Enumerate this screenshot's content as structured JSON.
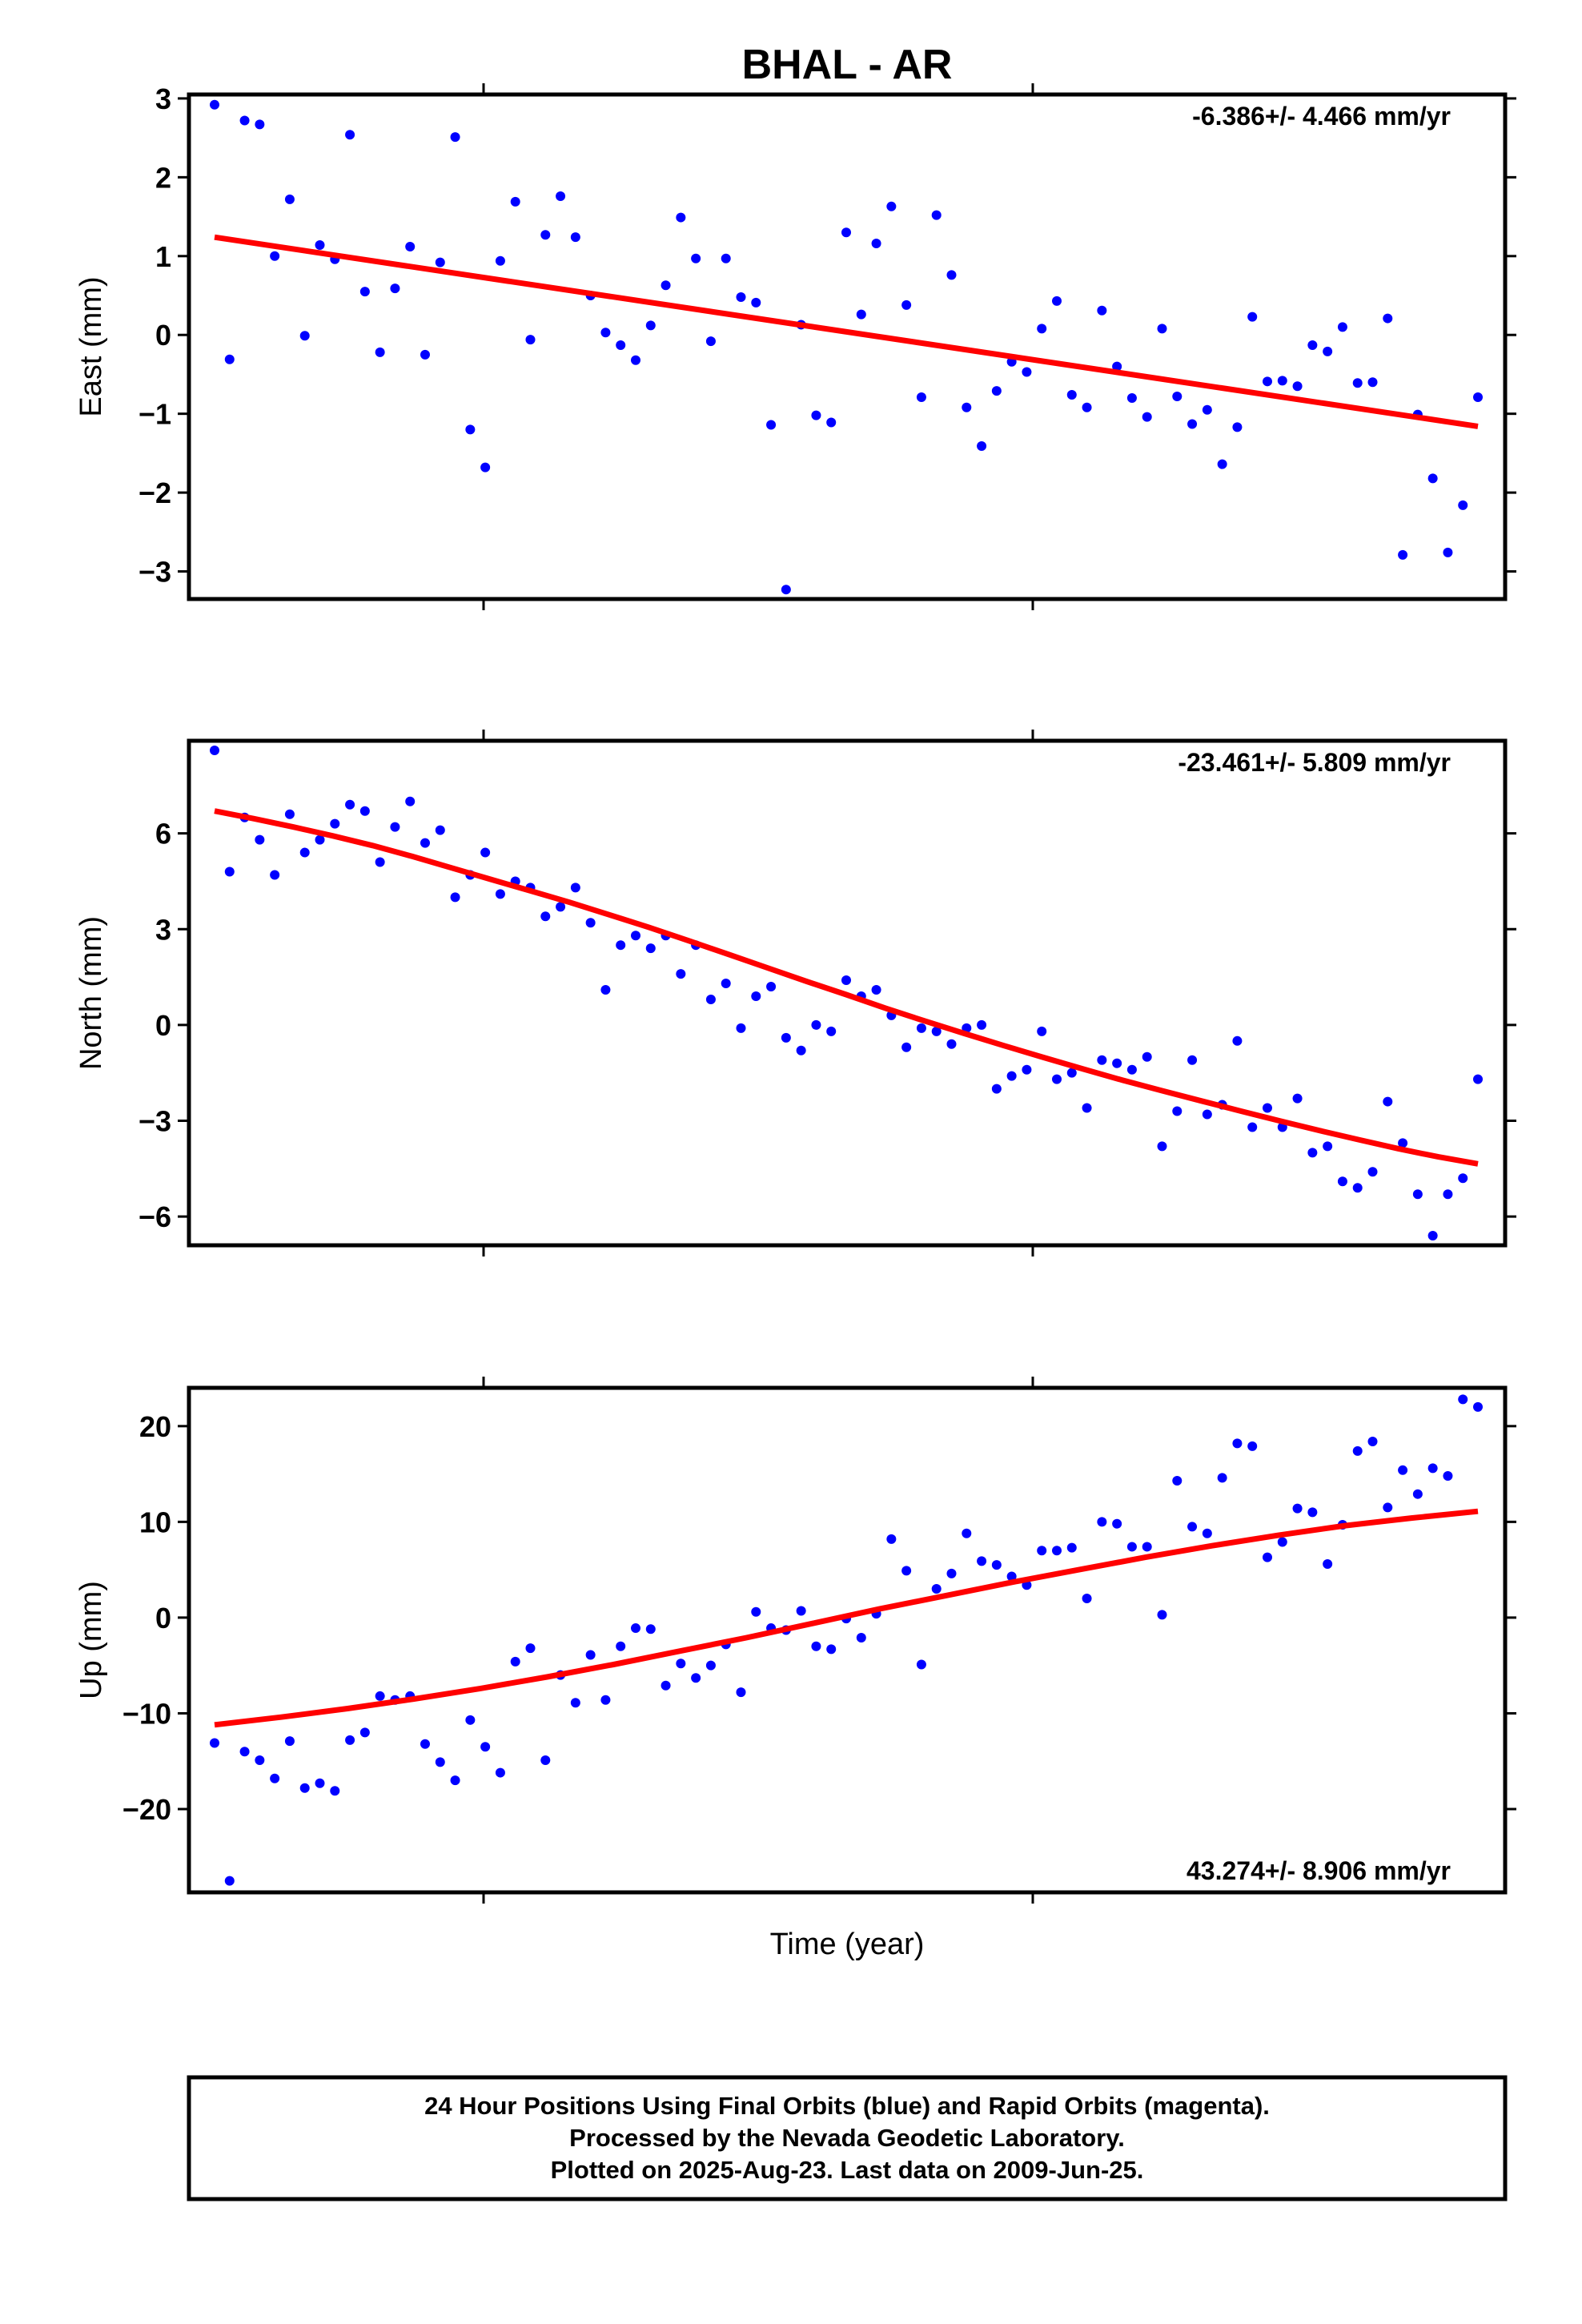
{
  "page_title": "BHAL - AR",
  "x_axis_label": "Time (year)",
  "colors": {
    "final_orbits": "#0000ff",
    "fit_line": "#ff0000",
    "frame": "#000000"
  },
  "footer": {
    "line1": "24 Hour Positions Using Final Orbits (blue) and Rapid Orbits (magenta).",
    "line2": "Processed by the Nevada Geodetic Laboratory.",
    "line3": "Plotted on 2025-Aug-23. Last data on 2009-Jun-25."
  },
  "chart_data": [
    {
      "type": "scatter",
      "ylabel": "East (mm)",
      "ylim": [
        -3.35,
        3.05
      ],
      "yticks": [
        3,
        2,
        1,
        0,
        -1,
        -2,
        -3
      ],
      "ytick_labels": [
        "3",
        "2",
        "1",
        "0",
        "−1",
        "−2",
        "−3"
      ],
      "rate_text": "-6.386+/- 4.466 mm/yr",
      "rate_position": "top-right",
      "x_tick_count": 2,
      "grid": false,
      "points": [
        2.92,
        -0.31,
        2.72,
        2.67,
        1.0,
        1.72,
        -0.01,
        1.14,
        0.96,
        2.54,
        0.55,
        -0.22,
        0.59,
        1.12,
        -0.25,
        0.92,
        2.51,
        -1.2,
        -1.68,
        0.94,
        1.69,
        -0.06,
        1.27,
        1.76,
        1.24,
        0.5,
        0.03,
        -0.13,
        -0.32,
        0.12,
        0.63,
        1.49,
        0.97,
        -0.08,
        0.97,
        0.48,
        0.41,
        -1.14,
        -3.23,
        0.13,
        -1.02,
        -1.11,
        1.3,
        0.26,
        1.16,
        1.63,
        0.38,
        -0.79,
        1.52,
        0.76,
        -0.92,
        -1.41,
        -0.71,
        -0.34,
        -0.47,
        0.08,
        0.43,
        -0.76,
        -0.92,
        0.31,
        -0.4,
        -0.8,
        -1.04,
        0.08,
        -0.78,
        -1.13,
        -0.95,
        -1.64,
        -1.17,
        0.23,
        -0.59,
        -0.58,
        -0.65,
        -0.13,
        -0.21,
        0.1,
        -0.61,
        -0.6,
        0.21,
        -2.79,
        -1.01,
        -1.82,
        -2.76,
        -2.16,
        -0.79
      ],
      "fit": [
        1.24,
        -1.16
      ]
    },
    {
      "type": "scatter",
      "ylabel": "North (mm)",
      "ylim": [
        -6.9,
        8.9
      ],
      "yticks": [
        6,
        3,
        0,
        -3,
        -6
      ],
      "ytick_labels": [
        "6",
        "3",
        "0",
        "−3",
        "−6"
      ],
      "rate_text": "-23.461+/- 5.809 mm/yr",
      "rate_position": "top-right",
      "x_tick_count": 2,
      "grid": false,
      "points": [
        8.6,
        4.8,
        6.5,
        5.8,
        4.7,
        6.6,
        5.4,
        5.8,
        6.3,
        6.9,
        6.7,
        5.1,
        6.2,
        7.0,
        5.7,
        6.1,
        4.0,
        4.7,
        5.4,
        4.1,
        4.5,
        4.3,
        3.4,
        3.7,
        4.3,
        3.2,
        1.1,
        2.5,
        2.8,
        2.4,
        2.8,
        1.6,
        2.5,
        0.8,
        1.3,
        -0.1,
        0.9,
        1.2,
        -0.4,
        -0.8,
        0.0,
        -0.2,
        1.4,
        0.9,
        1.1,
        0.3,
        -0.7,
        -0.1,
        -0.2,
        -0.6,
        -0.1,
        0.0,
        -2.0,
        -1.6,
        -1.4,
        -0.2,
        -1.7,
        -1.5,
        -2.6,
        -1.1,
        -1.2,
        -1.4,
        -1.0,
        -3.8,
        -2.7,
        -1.1,
        -2.8,
        -2.5,
        -0.5,
        -3.2,
        -2.6,
        -3.2,
        -2.3,
        -4.0,
        -3.8,
        -4.9,
        -5.1,
        -4.6,
        -2.4,
        -3.7,
        -5.3,
        -6.6,
        -5.3,
        -4.8,
        -1.7
      ],
      "fit": [
        6.7,
        6.46,
        6.2,
        5.92,
        5.62,
        5.28,
        4.92,
        4.56,
        4.2,
        3.84,
        3.45,
        3.06,
        2.64,
        2.22,
        1.79,
        1.36,
        0.95,
        0.52,
        0.12,
        -0.27,
        -0.65,
        -1.02,
        -1.38,
        -1.73,
        -2.06,
        -2.38,
        -2.7,
        -3.01,
        -3.31,
        -3.6,
        -3.88,
        -4.13,
        -4.35
      ]
    },
    {
      "type": "scatter",
      "ylabel": "Up (mm)",
      "ylim": [
        -28.7,
        24
      ],
      "yticks": [
        20,
        10,
        0,
        -10,
        -20
      ],
      "ytick_labels": [
        "20",
        "10",
        "0",
        "−10",
        "−20"
      ],
      "rate_text": "43.274+/- 8.906 mm/yr",
      "rate_position": "bottom-right",
      "x_tick_count": 2,
      "grid": false,
      "points": [
        -13.1,
        -27.5,
        -14.0,
        -14.9,
        -16.8,
        -12.9,
        -17.8,
        -17.3,
        -18.1,
        -12.8,
        -12.0,
        -8.2,
        -8.6,
        -8.2,
        -13.2,
        -15.1,
        -17.0,
        -10.7,
        -13.5,
        -16.2,
        -4.6,
        -3.2,
        -14.9,
        -6.0,
        -8.9,
        -3.9,
        -8.6,
        -3.0,
        -1.1,
        -1.2,
        -7.1,
        -4.8,
        -6.3,
        -5.0,
        -2.8,
        -7.8,
        0.6,
        -1.1,
        -1.3,
        0.7,
        -3.0,
        -3.3,
        -0.1,
        -2.1,
        0.4,
        8.2,
        4.9,
        -4.9,
        3.0,
        4.6,
        8.8,
        5.9,
        5.5,
        4.3,
        3.4,
        7.0,
        7.0,
        7.3,
        2.0,
        10.0,
        9.8,
        7.4,
        7.4,
        0.3,
        14.3,
        9.5,
        8.8,
        14.6,
        18.2,
        17.9,
        6.3,
        7.9,
        11.4,
        11.0,
        5.6,
        9.7,
        17.4,
        18.4,
        11.5,
        15.4,
        12.9,
        15.6,
        14.8,
        22.8,
        22.0
      ],
      "fit": [
        -11.2,
        -10.4,
        -9.5,
        -8.5,
        -7.4,
        -6.2,
        -4.9,
        -3.5,
        -2.1,
        -0.6,
        0.9,
        2.3,
        3.7,
        5.0,
        6.3,
        7.5,
        8.6,
        9.6,
        10.4,
        11.1
      ]
    }
  ]
}
